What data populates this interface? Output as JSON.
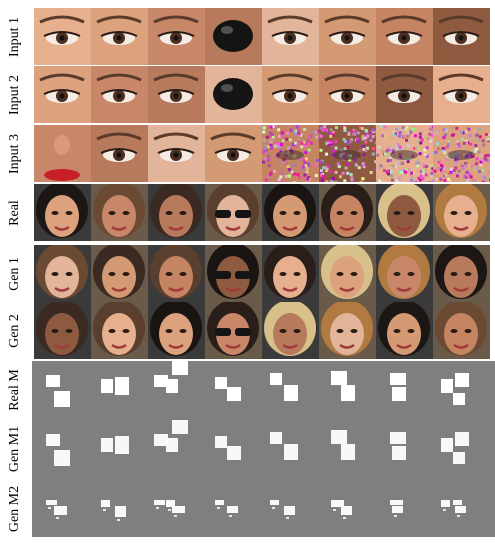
{
  "rows": [
    {
      "label": "Input 1",
      "kind": "input"
    },
    {
      "label": "Input 2",
      "kind": "input"
    },
    {
      "label": "Input 3",
      "kind": "input"
    },
    {
      "label": "Real",
      "kind": "face"
    },
    {
      "label": "Gen 1",
      "kind": "face"
    },
    {
      "label": "Gen 2",
      "kind": "face"
    },
    {
      "label": "Real M",
      "kind": "mask"
    },
    {
      "label": "Gen M1",
      "kind": "mask"
    },
    {
      "label": "Gen M2",
      "kind": "mask"
    }
  ],
  "columns": 8,
  "colors": {
    "skin_light": "#e8b896",
    "skin_mid": "#c98b68",
    "skin_dark": "#7a4a34",
    "hair_dark": "#2a1e1a",
    "hair_blond": "#d9b878",
    "mask_background": "#7f7f7f",
    "mask_patch": "#ffffff",
    "noise": "#b07a8a"
  }
}
